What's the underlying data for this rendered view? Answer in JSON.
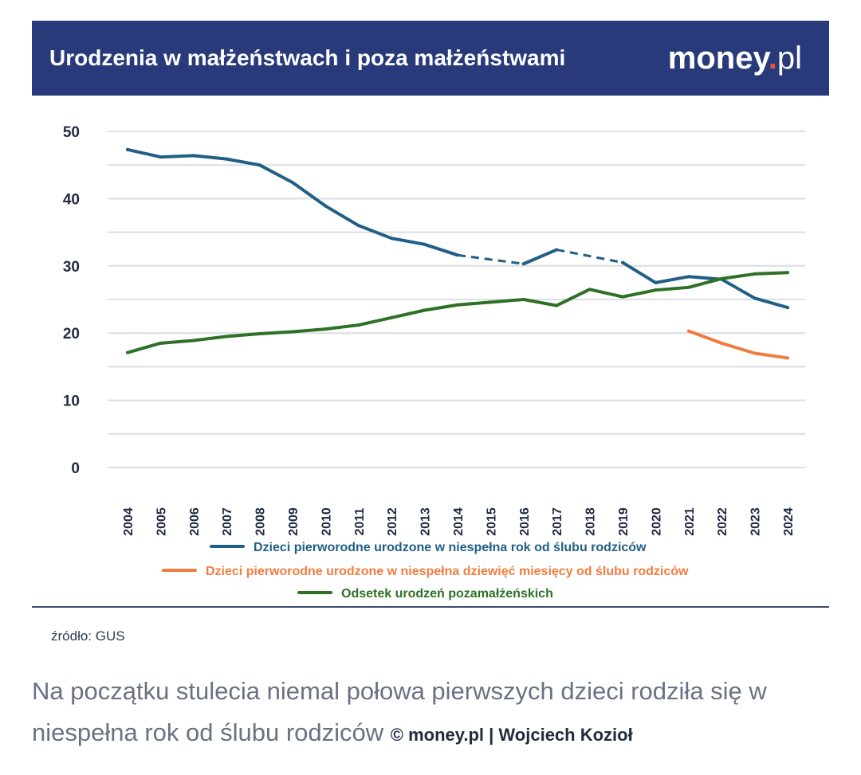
{
  "header": {
    "title": "Urodzenia w małżeństwach i poza małżeństwami",
    "logo_brand": "money",
    "logo_dot": ".",
    "logo_tld": "pl"
  },
  "chart_data": {
    "type": "line",
    "title": "Urodzenia w małżeństwach i poza małżeństwami",
    "xlabel": "",
    "ylabel": "",
    "ylim": [
      0,
      50
    ],
    "yticks": [
      0,
      10,
      20,
      30,
      40,
      50
    ],
    "grid": true,
    "x": [
      "2004",
      "2005",
      "2006",
      "2007",
      "2008",
      "2009",
      "2010",
      "2011",
      "2012",
      "2013",
      "2014",
      "2015",
      "2016",
      "2017",
      "2018",
      "2019",
      "2020",
      "2021",
      "2022",
      "2023",
      "2024"
    ],
    "series": [
      {
        "name": "Dzieci pierworodne urodzone w niespełna rok od ślubu rodziców",
        "color": "#215f86",
        "values": [
          47.3,
          46.2,
          46.4,
          45.9,
          45.0,
          42.4,
          38.9,
          36.0,
          34.1,
          33.2,
          31.6,
          null,
          30.3,
          32.4,
          null,
          30.5,
          27.5,
          28.4,
          28.0,
          25.2,
          23.8
        ],
        "dashed_gaps": [
          [
            2014,
            2016
          ],
          [
            2017,
            2019
          ]
        ]
      },
      {
        "name": "Dzieci pierworodne urodzone w niespełna dziewięć miesięcy od ślubu rodziców",
        "color": "#f07d3f",
        "values": [
          null,
          null,
          null,
          null,
          null,
          null,
          null,
          null,
          null,
          null,
          null,
          null,
          null,
          null,
          null,
          null,
          null,
          20.3,
          18.5,
          17.0,
          16.3
        ]
      },
      {
        "name": "Odsetek urodzeń pozamałżeńskich",
        "color": "#2d7126",
        "values": [
          17.1,
          18.5,
          18.9,
          19.5,
          19.9,
          20.2,
          20.6,
          21.2,
          22.3,
          23.4,
          24.2,
          24.6,
          25.0,
          24.1,
          26.5,
          25.4,
          26.4,
          26.8,
          28.1,
          28.8,
          29.0
        ]
      }
    ]
  },
  "source": "źródło: GUS",
  "caption": {
    "text": "Na początku stulecia niemal połowa pierwszych dzieci rodziła się w niespełna rok od ślubu rodziców",
    "credit": "© money.pl | Wojciech Kozioł"
  }
}
